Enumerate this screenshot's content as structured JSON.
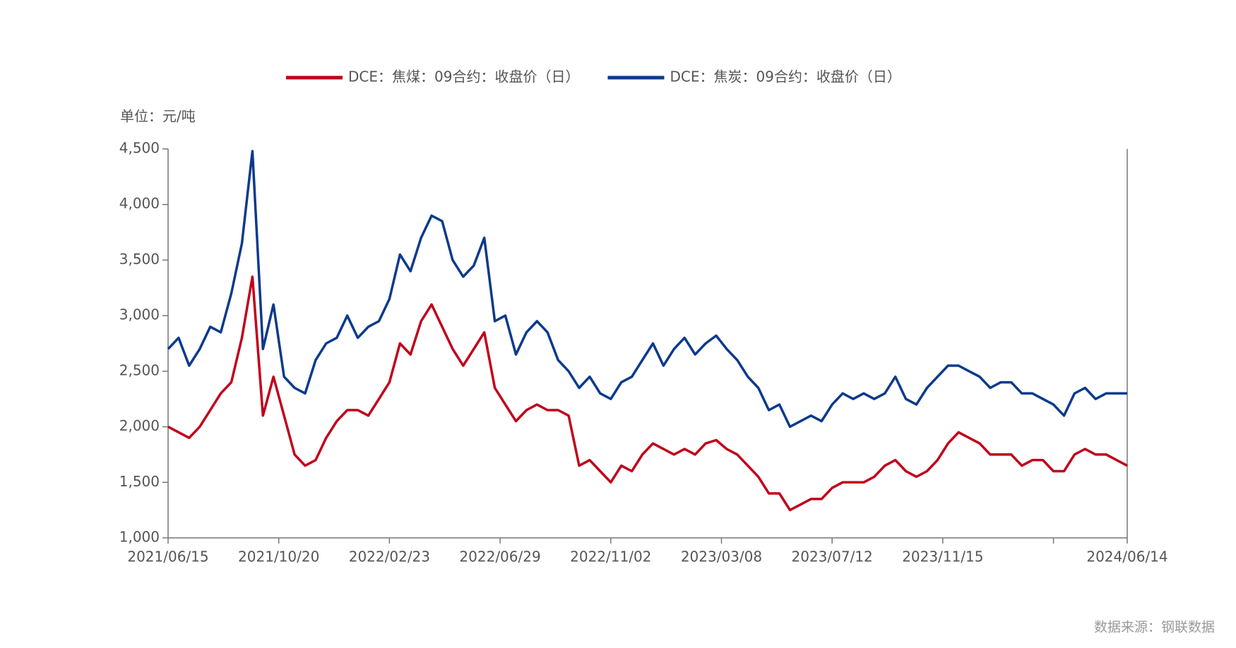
{
  "chart_data": {
    "type": "line",
    "unit_label": "单位：元/吨",
    "source": "数据来源：钢联数据",
    "x": [
      0,
      8,
      16,
      24,
      32,
      40,
      48,
      56,
      64,
      72,
      80,
      88,
      96,
      104,
      112,
      120,
      128,
      136,
      144,
      152,
      160,
      168,
      176,
      184,
      192,
      200,
      208,
      216,
      224,
      232,
      240,
      248,
      256,
      264,
      272,
      280,
      288,
      296,
      304,
      312,
      320,
      328,
      336,
      344,
      352,
      360,
      368,
      376,
      384,
      392,
      400,
      408,
      416,
      424,
      432,
      440,
      448,
      456,
      464,
      472,
      480,
      488,
      496,
      504,
      512,
      520,
      528,
      536,
      544,
      552,
      560,
      568,
      576,
      584,
      592,
      600,
      608,
      616,
      624,
      632,
      640,
      648,
      656,
      664,
      672,
      680,
      688,
      696,
      704,
      712,
      720,
      728
    ],
    "xlim": [
      0,
      728
    ],
    "xticks": [
      {
        "value": 0,
        "label": "2021/06/15"
      },
      {
        "value": 84,
        "label": "2021/10/20"
      },
      {
        "value": 168,
        "label": "2022/02/23"
      },
      {
        "value": 252,
        "label": "2022/06/29"
      },
      {
        "value": 336,
        "label": "2022/11/02"
      },
      {
        "value": 420,
        "label": "2023/03/08"
      },
      {
        "value": 504,
        "label": "2023/07/12"
      },
      {
        "value": 588,
        "label": "2023/11/15"
      },
      {
        "value": 672,
        "label": null
      },
      {
        "value": 728,
        "label": "2024/06/14"
      }
    ],
    "ylim": [
      1000,
      4500
    ],
    "yticks": [
      {
        "value": 1000,
        "label": "1,000"
      },
      {
        "value": 1500,
        "label": "1,500"
      },
      {
        "value": 2000,
        "label": "2,000"
      },
      {
        "value": 2500,
        "label": "2,500"
      },
      {
        "value": 3000,
        "label": "3,000"
      },
      {
        "value": 3500,
        "label": "3,500"
      },
      {
        "value": 4000,
        "label": "4,000"
      },
      {
        "value": 4500,
        "label": "4,500"
      }
    ],
    "legend": "top",
    "series": [
      {
        "name": "DCE：焦煤：09合约：收盘价（日）",
        "color": "#c0001a",
        "values": [
          2000,
          1950,
          1900,
          2000,
          2150,
          2300,
          2400,
          2800,
          3350,
          2100,
          2450,
          2100,
          1750,
          1650,
          1700,
          1900,
          2050,
          2150,
          2150,
          2100,
          2250,
          2400,
          2750,
          2650,
          2950,
          3100,
          2900,
          2700,
          2550,
          2700,
          2850,
          2350,
          2200,
          2050,
          2150,
          2200,
          2150,
          2150,
          2100,
          1650,
          1700,
          1600,
          1500,
          1650,
          1600,
          1750,
          1850,
          1800,
          1750,
          1800,
          1750,
          1850,
          1880,
          1800,
          1750,
          1650,
          1550,
          1400,
          1400,
          1250,
          1300,
          1350,
          1350,
          1450,
          1500,
          1500,
          1500,
          1550,
          1650,
          1700,
          1600,
          1550,
          1600,
          1700,
          1850,
          1950,
          1900,
          1850,
          1750,
          1750,
          1750,
          1650,
          1700,
          1700,
          1600,
          1600,
          1750,
          1800,
          1750,
          1750,
          1700,
          1650
        ]
      },
      {
        "name": "DCE：焦炭：09合约：收盘价（日）",
        "color": "#0b3a8c",
        "values": [
          2700,
          2800,
          2550,
          2700,
          2900,
          2850,
          3200,
          3650,
          4480,
          2700,
          3100,
          2450,
          2350,
          2300,
          2600,
          2750,
          2800,
          3000,
          2800,
          2900,
          2950,
          3150,
          3550,
          3400,
          3700,
          3900,
          3850,
          3500,
          3350,
          3450,
          3700,
          2950,
          3000,
          2650,
          2850,
          2950,
          2850,
          2600,
          2500,
          2350,
          2450,
          2300,
          2250,
          2400,
          2450,
          2600,
          2750,
          2550,
          2700,
          2800,
          2650,
          2750,
          2820,
          2700,
          2600,
          2450,
          2350,
          2150,
          2200,
          2000,
          2050,
          2100,
          2050,
          2200,
          2300,
          2250,
          2300,
          2250,
          2300,
          2450,
          2250,
          2200,
          2350,
          2450,
          2550,
          2550,
          2500,
          2450,
          2350,
          2400,
          2400,
          2300,
          2300,
          2250,
          2200,
          2100,
          2300,
          2350,
          2250,
          2300,
          2300,
          2300
        ]
      }
    ]
  }
}
